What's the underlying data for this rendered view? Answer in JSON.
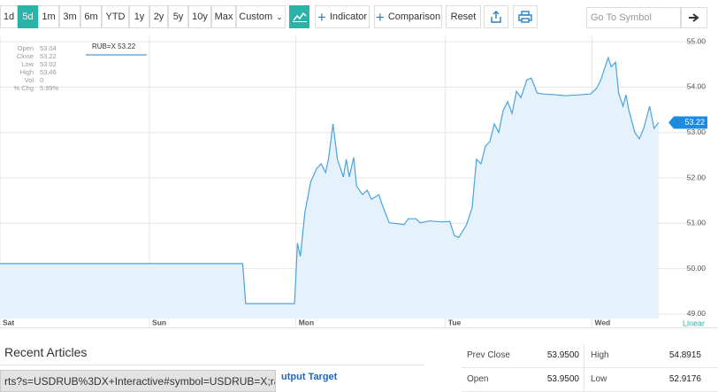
{
  "toolbar": {
    "ranges": [
      "1d",
      "5d",
      "1m",
      "3m",
      "6m",
      "YTD",
      "1y",
      "2y",
      "5y",
      "10y",
      "Max"
    ],
    "active_range": "5d",
    "custom": "Custom",
    "indicator": "Indicator",
    "comparison": "Comparison",
    "reset": "Reset",
    "search_placeholder": "Go To Symbol"
  },
  "chart_data": {
    "type": "line",
    "color": "#4aa3df",
    "fill_color": "#e5f1fb",
    "grid": true,
    "x": [
      0,
      1.64,
      1.66,
      1.99,
      2.01,
      2.03,
      2.06,
      2.1,
      2.14,
      2.17,
      2.2,
      2.22,
      2.25,
      2.28,
      2.32,
      2.34,
      2.36,
      2.39,
      2.41,
      2.45,
      2.48,
      2.51,
      2.56,
      2.58,
      2.63,
      2.69,
      2.73,
      2.76,
      2.81,
      2.84,
      2.9,
      2.99,
      3.04,
      3.07,
      3.1,
      3.15,
      3.19,
      3.22,
      3.25,
      3.28,
      3.31,
      3.34,
      3.37,
      3.4,
      3.43,
      3.46,
      3.49,
      3.52,
      3.56,
      3.59,
      3.63,
      3.67,
      3.76,
      3.82,
      3.91,
      3.99,
      4.03,
      4.06,
      4.08,
      4.11,
      4.13,
      4.16,
      4.18,
      4.21,
      4.23,
      4.25,
      4.29,
      4.32,
      4.35,
      4.39,
      4.42,
      4.45
    ],
    "values": [
      50.11,
      50.11,
      49.23,
      49.23,
      50.56,
      50.27,
      51.24,
      51.92,
      52.21,
      52.31,
      52.12,
      52.41,
      53.19,
      52.41,
      52.02,
      52.41,
      52.02,
      52.45,
      51.82,
      51.63,
      51.73,
      51.53,
      51.63,
      51.43,
      51.01,
      50.99,
      50.97,
      51.1,
      51.1,
      51.01,
      51.05,
      51.03,
      51.04,
      50.73,
      50.69,
      50.95,
      51.34,
      52.41,
      52.31,
      52.7,
      52.8,
      53.19,
      53.0,
      53.48,
      53.68,
      53.42,
      53.91,
      53.77,
      54.16,
      54.2,
      53.87,
      53.85,
      53.83,
      53.81,
      53.83,
      53.85,
      53.97,
      54.16,
      54.36,
      54.65,
      54.45,
      54.55,
      53.87,
      53.58,
      53.83,
      53.48,
      53.0,
      52.86,
      53.09,
      53.58,
      53.09,
      53.22
    ],
    "xlim": [
      0,
      4.78
    ],
    "ylim": [
      48.9,
      55.14
    ],
    "xticks": [
      {
        "value": 0,
        "label": "Sat"
      },
      {
        "value": 1.01,
        "label": "Sun"
      },
      {
        "value": 2.0,
        "label": "Mon"
      },
      {
        "value": 3.01,
        "label": "Tue"
      },
      {
        "value": 4.0,
        "label": "Wed"
      }
    ],
    "yticks": [
      {
        "value": 49,
        "label": "49.00"
      },
      {
        "value": 50,
        "label": "50.00"
      },
      {
        "value": 51,
        "label": "51.00"
      },
      {
        "value": 52,
        "label": "52.00"
      },
      {
        "value": 53,
        "label": "53.00"
      },
      {
        "value": 54,
        "label": "54.00"
      },
      {
        "value": 55,
        "label": "55.00"
      }
    ],
    "last_value": 53.22,
    "hover_label": "RUB=X 53.22",
    "scale_label": "Linear"
  },
  "quote_panel": {
    "labels": [
      "Open",
      "Close",
      "Low",
      "High",
      "Vol",
      "% Chg"
    ],
    "values": [
      "53.04",
      "53.22",
      "53.02",
      "53.46",
      "0",
      "5.99%"
    ]
  },
  "articles": {
    "title": "Recent Articles",
    "link": "utput Target"
  },
  "stats": {
    "rows": [
      [
        "Prev Close",
        "53.9500",
        "High",
        "54.8915"
      ],
      [
        "Open",
        "53.9500",
        "Low",
        "52.9176"
      ]
    ]
  },
  "status_url": "rts?s=USDRUB%3DX+Interactive#symbol=USDRUB=X;ran..."
}
